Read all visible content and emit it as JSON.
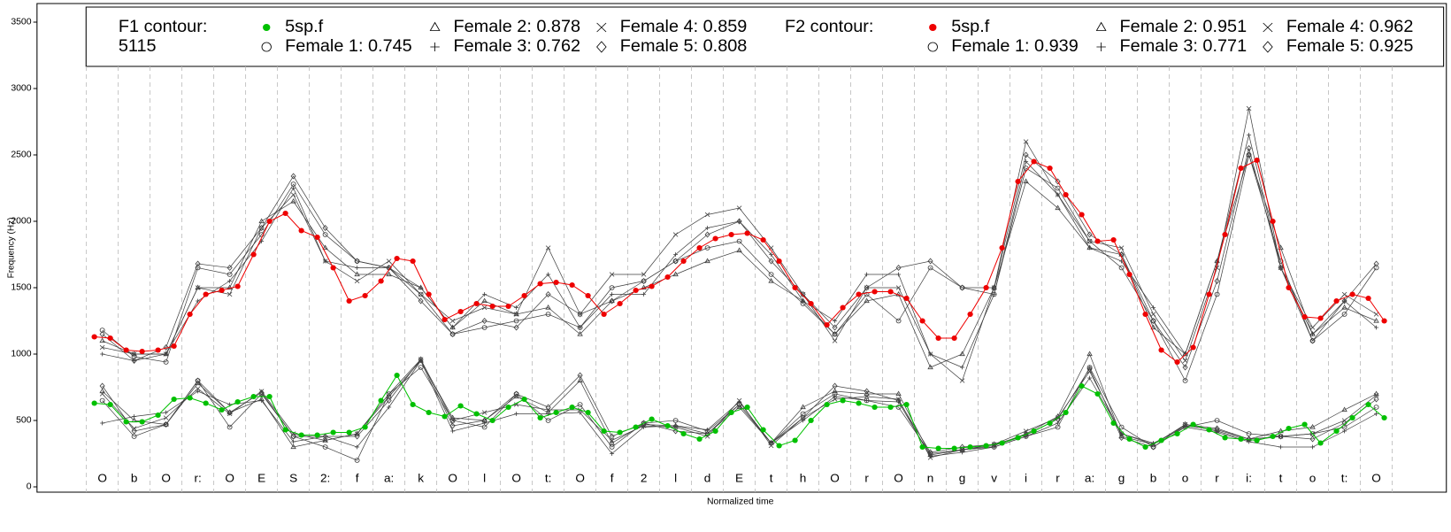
{
  "chart_data": {
    "type": "line",
    "xlabel": "Normalized time",
    "ylabel": "Frequency (Hz)",
    "xlim": [
      -1.55,
      42.7
    ],
    "ylim": [
      -40,
      3640
    ],
    "yticks": [
      0,
      500,
      1000,
      1500,
      2000,
      2500,
      3000,
      3500
    ],
    "grid": false,
    "segments": [
      "O",
      "b",
      "O",
      "r:",
      "O",
      "E",
      "S",
      "2:",
      "f",
      "a:",
      "k",
      "O",
      "l",
      "O",
      "t:",
      "O",
      "f",
      "2",
      "l",
      "d",
      "E",
      "t",
      "h",
      "O",
      "r",
      "O",
      "n",
      "g",
      "v",
      "i",
      "r",
      "a:",
      "g",
      "b",
      "o",
      "r",
      "i:",
      "t",
      "o",
      "t:",
      "O"
    ],
    "x": [
      0.5,
      1.5,
      2.5,
      3.5,
      4.5,
      5.5,
      6.5,
      7.5,
      8.5,
      9.5,
      10.5,
      11.5,
      12.5,
      13.5,
      14.5,
      15.5,
      16.5,
      17.5,
      18.5,
      19.5,
      20.5,
      21.5,
      22.5,
      23.5,
      24.5,
      25.5,
      26.5,
      27.5,
      28.5,
      29.5,
      30.5,
      31.5,
      32.5,
      33.5,
      34.5,
      35.5,
      36.5,
      37.5,
      38.5,
      39.5,
      40.5
    ],
    "contours": [
      {
        "title": "F1 contour:",
        "subtitle": "5115",
        "series": [
          {
            "name": "5sp.f",
            "color": "#00c000",
            "marker": "dot",
            "x": [
              0.25,
              0.75,
              1.25,
              1.75,
              2.25,
              2.75,
              3.25,
              3.75,
              4.25,
              4.75,
              5.25,
              5.75,
              6.25,
              6.75,
              7.25,
              7.75,
              8.25,
              8.75,
              9.25,
              9.75,
              10.25,
              10.75,
              11.25,
              11.75,
              12.25,
              12.75,
              13.25,
              13.75,
              14.25,
              14.75,
              15.25,
              15.75,
              16.25,
              16.75,
              17.25,
              17.75,
              18.25,
              18.75,
              19.25,
              19.75,
              20.25,
              20.75,
              21.25,
              21.75,
              22.25,
              22.75,
              23.25,
              23.75,
              24.25,
              24.75,
              25.25,
              25.75,
              26.25,
              26.75,
              27.25,
              27.75,
              28.25,
              28.75,
              29.25,
              29.75,
              30.25,
              30.75,
              31.25,
              31.75,
              32.25,
              32.75,
              33.25,
              33.75,
              34.25,
              34.75,
              35.25,
              35.75,
              36.25,
              36.75,
              37.25,
              37.75,
              38.25,
              38.75,
              39.25,
              39.75,
              40.25,
              40.75
            ],
            "values": [
              630,
              620,
              490,
              490,
              540,
              660,
              670,
              630,
              580,
              640,
              680,
              680,
              430,
              390,
              390,
              410,
              410,
              450,
              650,
              840,
              620,
              560,
              530,
              610,
              550,
              500,
              600,
              660,
              520,
              560,
              600,
              560,
              420,
              410,
              450,
              510,
              460,
              400,
              360,
              420,
              560,
              600,
              430,
              310,
              350,
              500,
              620,
              650,
              630,
              600,
              600,
              620,
              300,
              290,
              290,
              300,
              310,
              330,
              370,
              420,
              480,
              560,
              760,
              700,
              480,
              360,
              300,
              350,
              400,
              470,
              430,
              370,
              360,
              350,
              380,
              440,
              470,
              330,
              420,
              520,
              620,
              520
            ]
          },
          {
            "name": "Female 1: 0.745",
            "color": "#404040",
            "marker": "circle",
            "values": [
              650,
              380,
              470,
              800,
              450,
              700,
              380,
              300,
              200,
              700,
              900,
              500,
              450,
              700,
              500,
              620,
              300,
              480,
              500,
              420,
              620,
              330,
              550,
              700,
              650,
              600,
              250,
              280,
              300,
              380,
              450,
              900,
              450,
              300,
              450,
              500,
              400,
              380,
              400,
              450,
              600
            ]
          },
          {
            "name": "Female 2: 0.878",
            "color": "#404040",
            "marker": "triangle",
            "values": [
              720,
              500,
              470,
              780,
              560,
              660,
              300,
              350,
              400,
              680,
              950,
              520,
              500,
              680,
              560,
              800,
              330,
              470,
              460,
              400,
              600,
              330,
              600,
              720,
              700,
              700,
              240,
              280,
              310,
              400,
              530,
              1000,
              380,
              320,
              460,
              430,
              360,
              420,
              450,
              580,
              700
            ]
          },
          {
            "name": "Female 3: 0.762",
            "color": "#404040",
            "marker": "plus",
            "values": [
              480,
              530,
              560,
              720,
              620,
              650,
              340,
              380,
              300,
              600,
              950,
              420,
              480,
              550,
              550,
              560,
              250,
              450,
              460,
              430,
              640,
              330,
              500,
              680,
              650,
              640,
              230,
              260,
              300,
              380,
              480,
              820,
              400,
              330,
              450,
              410,
              340,
              300,
              300,
              420,
              550
            ]
          },
          {
            "name": "Female 4: 0.859",
            "color": "#404040",
            "marker": "cross",
            "values": [
              700,
              440,
              520,
              740,
              550,
              720,
              400,
              350,
              400,
              700,
              960,
              500,
              560,
              620,
              580,
              580,
              350,
              460,
              450,
              380,
              650,
              310,
              520,
              660,
              680,
              660,
              220,
              280,
              320,
              420,
              520,
              870,
              400,
              320,
              470,
              420,
              350,
              380,
              400,
              500,
              690
            ]
          },
          {
            "name": "Female 5: 0.808",
            "color": "#404040",
            "marker": "diamond",
            "values": [
              760,
              420,
              470,
              800,
              560,
              710,
              380,
              380,
              380,
              650,
              960,
              460,
              500,
              700,
              600,
              840,
              380,
              480,
              420,
              400,
              620,
              330,
              520,
              760,
              720,
              650,
              260,
              300,
              320,
              390,
              510,
              890,
              370,
              300,
              470,
              440,
              360,
              380,
              360,
              480,
              660
            ]
          }
        ]
      },
      {
        "title": "F2 contour:",
        "series": [
          {
            "name": "5sp.f",
            "color": "#ee0000",
            "marker": "dot",
            "x": [
              0.25,
              0.75,
              1.25,
              1.75,
              2.25,
              2.75,
              3.25,
              3.75,
              4.25,
              4.75,
              5.25,
              5.75,
              6.25,
              6.75,
              7.25,
              7.75,
              8.25,
              8.75,
              9.25,
              9.75,
              10.25,
              10.75,
              11.25,
              11.75,
              12.25,
              12.75,
              13.25,
              13.75,
              14.25,
              14.75,
              15.25,
              15.75,
              16.25,
              16.75,
              17.25,
              17.75,
              18.25,
              18.75,
              19.25,
              19.75,
              20.25,
              20.75,
              21.25,
              21.75,
              22.25,
              22.75,
              23.25,
              23.75,
              24.25,
              24.75,
              25.25,
              25.75,
              26.25,
              26.75,
              27.25,
              27.75,
              28.25,
              28.75,
              29.25,
              29.75,
              30.25,
              30.75,
              31.25,
              31.75,
              32.25,
              32.75,
              33.25,
              33.75,
              34.25,
              34.75,
              35.25,
              35.75,
              36.25,
              36.75,
              37.25,
              37.75,
              38.25,
              38.75,
              39.25,
              39.75,
              40.25,
              40.75
            ],
            "values": [
              1130,
              1120,
              1030,
              1020,
              1030,
              1060,
              1300,
              1450,
              1480,
              1510,
              1750,
              2000,
              2060,
              1930,
              1880,
              1650,
              1400,
              1440,
              1550,
              1720,
              1700,
              1450,
              1260,
              1320,
              1380,
              1360,
              1360,
              1440,
              1530,
              1540,
              1520,
              1440,
              1300,
              1380,
              1480,
              1510,
              1580,
              1700,
              1800,
              1870,
              1900,
              1910,
              1860,
              1700,
              1500,
              1380,
              1220,
              1350,
              1450,
              1470,
              1470,
              1420,
              1250,
              1120,
              1120,
              1300,
              1500,
              1800,
              2300,
              2450,
              2400,
              2200,
              2050,
              1850,
              1860,
              1600,
              1300,
              1030,
              940,
              1050,
              1450,
              1900,
              2400,
              2460,
              2000,
              1500,
              1280,
              1270,
              1400,
              1450,
              1420,
              1250
            ]
          },
          {
            "name": "Female 1: 0.939",
            "color": "#404040",
            "marker": "circle",
            "values": [
              1180,
              980,
              940,
              1650,
              1600,
              1900,
              2280,
              1900,
              1700,
              1650,
              1450,
              1150,
              1200,
              1250,
              1300,
              1200,
              1500,
              1550,
              1700,
              1800,
              1850,
              1600,
              1380,
              1150,
              1450,
              1250,
              1650,
              1500,
              1450,
              2400,
              2250,
              1850,
              1650,
              1250,
              800,
              1450,
              2500,
              1700,
              1100,
              1300,
              1650
            ]
          },
          {
            "name": "Female 2: 0.951",
            "color": "#404040",
            "marker": "triangle",
            "values": [
              1100,
              1000,
              1000,
              1500,
              1500,
              2000,
              2150,
              1800,
              1600,
              1600,
              1500,
              1200,
              1400,
              1300,
              1350,
              1150,
              1400,
              1500,
              1600,
              1700,
              1780,
              1550,
              1400,
              1150,
              1400,
              1450,
              900,
              1000,
              1500,
              2300,
              2100,
              1800,
              1750,
              1200,
              1000,
              1700,
              2500,
              1800,
              1150,
              1350,
              1250
            ]
          },
          {
            "name": "Female 3: 0.771",
            "color": "#404040",
            "marker": "plus",
            "values": [
              1000,
              950,
              1000,
              1400,
              1550,
              1850,
              2250,
              1700,
              1650,
              1650,
              1500,
              1200,
              1450,
              1350,
              1600,
              1200,
              1450,
              1450,
              1750,
              1950,
              2000,
              1750,
              1400,
              1250,
              1600,
              1600,
              1000,
              900,
              1450,
              2450,
              2200,
              1800,
              1700,
              1350,
              1000,
              1700,
              2650,
              1650,
              1150,
              1400,
              1200
            ]
          },
          {
            "name": "Female 4: 0.962",
            "color": "#404040",
            "marker": "cross",
            "values": [
              1050,
              1000,
              1000,
              1500,
              1450,
              1950,
              2200,
              1700,
              1550,
              1700,
              1450,
              1250,
              1350,
              1300,
              1800,
              1300,
              1600,
              1600,
              1900,
              2050,
              2100,
              1800,
              1450,
              1100,
              1500,
              1500,
              1000,
              800,
              1500,
              2600,
              2200,
              1850,
              1800,
              1300,
              950,
              1650,
              2850,
              1650,
              1200,
              1450,
              1300
            ]
          },
          {
            "name": "Female 5: 0.925",
            "color": "#404040",
            "marker": "diamond",
            "values": [
              1150,
              950,
              1050,
              1680,
              1650,
              1950,
              2340,
              1950,
              1700,
              1650,
              1400,
              1150,
              1250,
              1200,
              1450,
              1300,
              1400,
              1550,
              1700,
              1900,
              2000,
              1700,
              1450,
              1200,
              1500,
              1650,
              1700,
              1500,
              1500,
              2500,
              2300,
              1900,
              1750,
              1250,
              900,
              1550,
              2550,
              1650,
              1100,
              1400,
              1680
            ]
          }
        ]
      }
    ]
  }
}
